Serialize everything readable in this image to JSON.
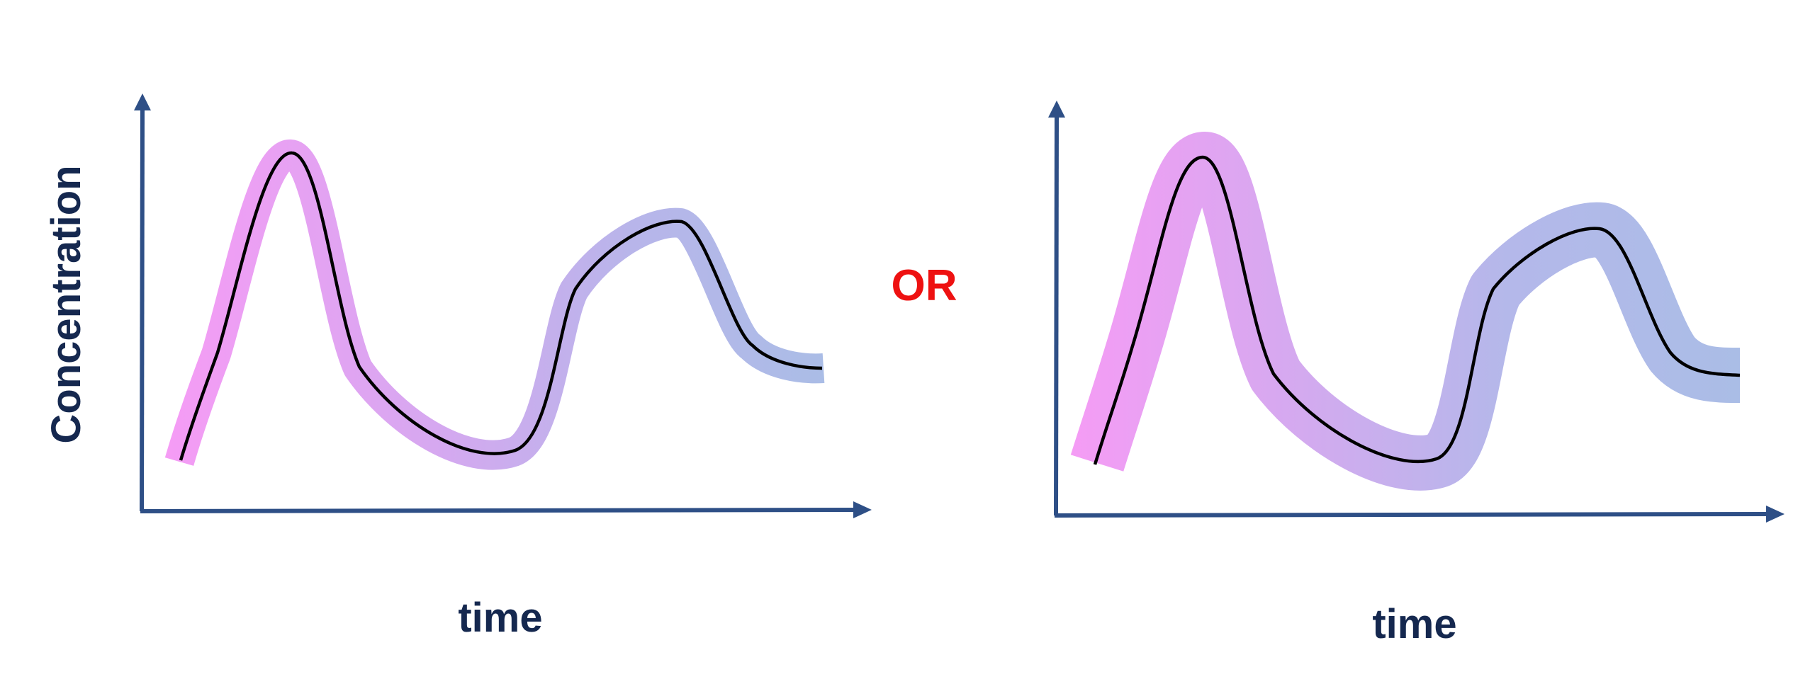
{
  "colors": {
    "axis": "#2e4f86",
    "axis_label": "#15284f",
    "separator": "#ee1111",
    "band_start": "#f59cf5",
    "band_mid": "#c9adec",
    "band_end": "#aabde6",
    "trace": "#000000"
  },
  "left_panel": {
    "y_label": "Concentration",
    "x_label": "time"
  },
  "separator": {
    "text": "OR"
  },
  "right_panel": {
    "x_label": "time"
  }
}
